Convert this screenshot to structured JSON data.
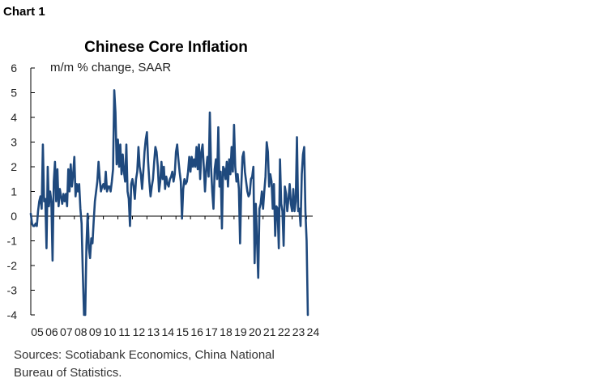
{
  "chart_label": "Chart 1",
  "source_line1": "Sources: Scotiabank Economics, China National",
  "source_line2": "Bureau of Statistics.",
  "colors": {
    "series": "#1f497d",
    "axis": "#000000"
  },
  "chart_data": {
    "type": "line",
    "title": "Chinese Core Inflation",
    "subtitle": "m/m % change, SAAR",
    "xlabel": "",
    "ylabel": "",
    "ylim": [
      -4,
      6
    ],
    "yticks": [
      6,
      5,
      4,
      3,
      2,
      1,
      0,
      -1,
      -2,
      -3,
      -4
    ],
    "ytick_labels": [
      "6",
      "5",
      "4",
      "3",
      "2",
      "1",
      "0",
      "-1",
      "-2",
      "-3",
      "-4"
    ],
    "xlim": [
      2005,
      2024.42
    ],
    "xtick_labels": [
      "05",
      "06",
      "07",
      "08",
      "09",
      "10",
      "11",
      "12",
      "13",
      "14",
      "15",
      "16",
      "17",
      "18",
      "19",
      "20",
      "21",
      "22",
      "23",
      "24"
    ],
    "xtick_positions": [
      2005,
      2006,
      2007,
      2008,
      2009,
      2010,
      2011,
      2012,
      2013,
      2014,
      2015,
      2016,
      2017,
      2018,
      2019,
      2020,
      2021,
      2022,
      2023,
      2024
    ],
    "grid": false,
    "legend": "none",
    "series": [
      {
        "start": "2005-01",
        "step": "month",
        "values": [
          0.1,
          -0.3,
          -0.4,
          -0.4,
          -0.3,
          -0.4,
          0.2,
          0.6,
          0.8,
          0.3,
          2.9,
          0.6,
          0.7,
          -1.3,
          2.0,
          0.4,
          1.0,
          0.6,
          -1.8,
          1.4,
          2.2,
          0.6,
          1.9,
          0.4,
          1.1,
          0.8,
          0.5,
          0.9,
          0.6,
          0.9,
          0.4,
          1.9,
          1.0,
          2.1,
          1.2,
          1.7,
          2.4,
          0.8,
          1.3,
          1.0,
          1.3,
          0.3,
          -0.3,
          -2.3,
          -4.0,
          -4.0,
          -1.2,
          0.1,
          -1.3,
          -1.7,
          -0.9,
          -1.1,
          -0.2,
          0.6,
          1.0,
          1.4,
          2.2,
          1.5,
          1.0,
          1.2,
          1.3,
          1.1,
          1.8,
          1.0,
          1.2,
          1.2,
          1.0,
          1.4,
          1.9,
          5.1,
          4.2,
          2.1,
          3.1,
          2.0,
          2.9,
          1.7,
          2.5,
          1.8,
          1.4,
          2.9,
          1.0,
          0.7,
          -0.4,
          1.3,
          1.5,
          1.2,
          0.7,
          1.5,
          1.8,
          2.8,
          2.0,
          1.7,
          1.1,
          1.8,
          2.6,
          3.1,
          3.4,
          2.2,
          1.4,
          0.8,
          1.2,
          1.5,
          2.2,
          2.8,
          2.6,
          2.0,
          1.0,
          1.4,
          2.2,
          1.5,
          2.0,
          1.1,
          1.6,
          1.3,
          1.2,
          1.5,
          1.6,
          1.8,
          1.4,
          1.7,
          2.6,
          2.9,
          2.3,
          1.8,
          1.4,
          -0.1,
          1.1,
          1.5,
          1.3,
          1.4,
          1.8,
          2.4,
          1.8,
          2.4,
          2.0,
          2.3,
          2.0,
          2.8,
          1.9,
          2.9,
          1.5,
          2.6,
          2.9,
          2.0,
          1.0,
          1.9,
          2.4,
          1.6,
          4.2,
          2.0,
          1.0,
          0.3,
          1.9,
          2.3,
          1.5,
          3.6,
          1.2,
          1.8,
          -0.5,
          2.0,
          1.9,
          1.5,
          2.2,
          1.2,
          2.3,
          1.7,
          2.8,
          1.8,
          3.7,
          2.0,
          1.4,
          1.7,
          1.1,
          -1.1,
          1.2,
          2.4,
          2.6,
          1.8,
          1.4,
          1.0,
          0.8,
          0.9,
          1.5,
          1.6,
          2.0,
          -1.9,
          0.5,
          -1.0,
          -2.5,
          0.3,
          0.5,
          1.0,
          0.3,
          1.0,
          1.6,
          3.0,
          2.6,
          1.2,
          1.7,
          1.4,
          0.3,
          1.3,
          -0.8,
          0.4,
          0.3,
          -1.3,
          2.3,
          0.5,
          0.2,
          -1.2,
          1.2,
          0.9,
          0.2,
          0.7,
          1.3,
          0.5,
          0.2,
          1.1,
          0.2,
          0.6,
          3.2,
          0.2,
          0.3,
          -0.4,
          1.7,
          2.5,
          2.8,
          0.2,
          -1.0,
          -4.0
        ]
      }
    ]
  }
}
